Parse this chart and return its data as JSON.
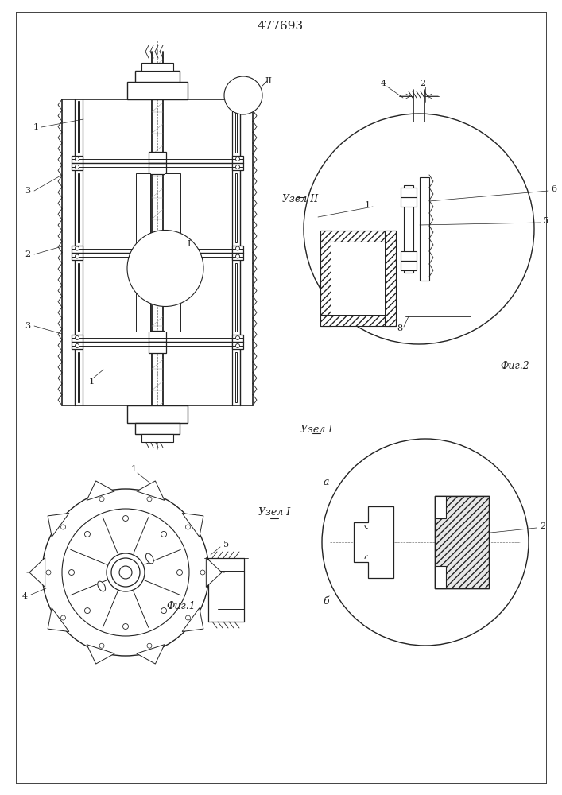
{
  "title": "477693",
  "bg_color": "#ffffff",
  "line_color": "#222222",
  "fig1_label": "Фиг.1",
  "fig2_label": "Фиг.2",
  "node1_label": "Узел I",
  "node2_label": "Узел II"
}
